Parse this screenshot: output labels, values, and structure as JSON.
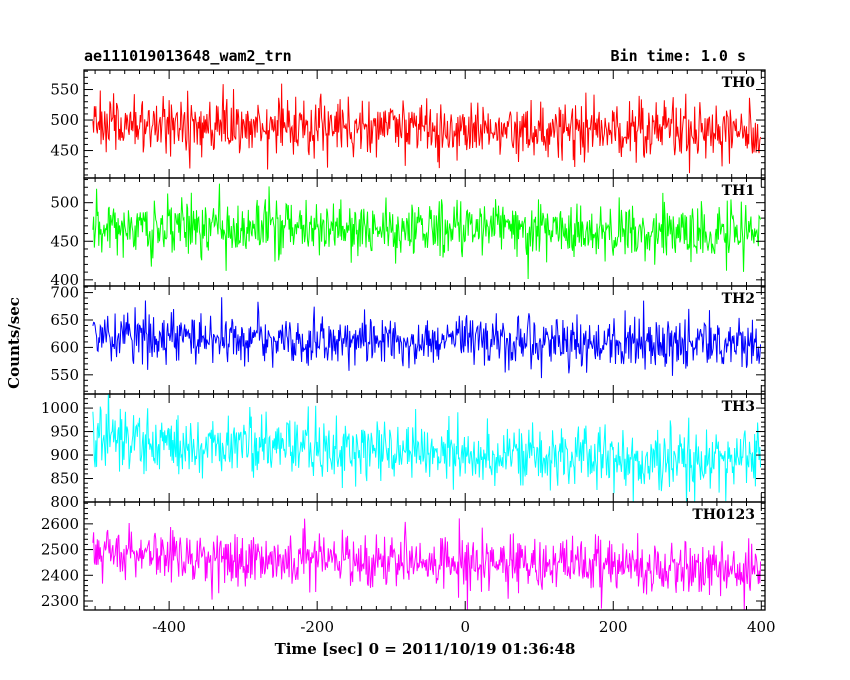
{
  "chart_data": {
    "type": "line",
    "title_left": "ae111019013648_wam2_trn",
    "title_right": "Bin time: 1.0 s",
    "xlabel": "Time [sec] 0 = 2011/10/19 01:36:48",
    "ylabel": "Counts/sec",
    "xlim": [
      -515,
      405
    ],
    "x_data_range": [
      -503,
      399
    ],
    "xticks": [
      -400,
      -200,
      0,
      200,
      400
    ],
    "grid": false,
    "panels": [
      {
        "name": "TH0",
        "color": "#ff0000",
        "ylim": [
          405,
          582
        ],
        "yticks": [
          450,
          500,
          550
        ],
        "mean_start": 493,
        "mean_end": 478,
        "noise_sd": 22
      },
      {
        "name": "TH1",
        "color": "#00ff00",
        "ylim": [
          392,
          532
        ],
        "yticks": [
          400,
          450,
          500
        ],
        "mean_start": 470,
        "mean_end": 460,
        "noise_sd": 18
      },
      {
        "name": "TH2",
        "color": "#0000ff",
        "ylim": [
          515,
          712
        ],
        "yticks": [
          550,
          600,
          650,
          700
        ],
        "mean_start": 618,
        "mean_end": 605,
        "noise_sd": 22
      },
      {
        "name": "TH3",
        "color": "#00ffff",
        "ylim": [
          800,
          1030
        ],
        "yticks": [
          800,
          850,
          900,
          950,
          1000
        ],
        "mean_start": 928,
        "mean_end": 885,
        "noise_sd": 32
      },
      {
        "name": "TH0123",
        "color": "#ff00ff",
        "ylim": [
          2265,
          2685
        ],
        "yticks": [
          2300,
          2400,
          2500,
          2600
        ],
        "mean_start": 2480,
        "mean_end": 2420,
        "noise_sd": 52
      }
    ]
  }
}
